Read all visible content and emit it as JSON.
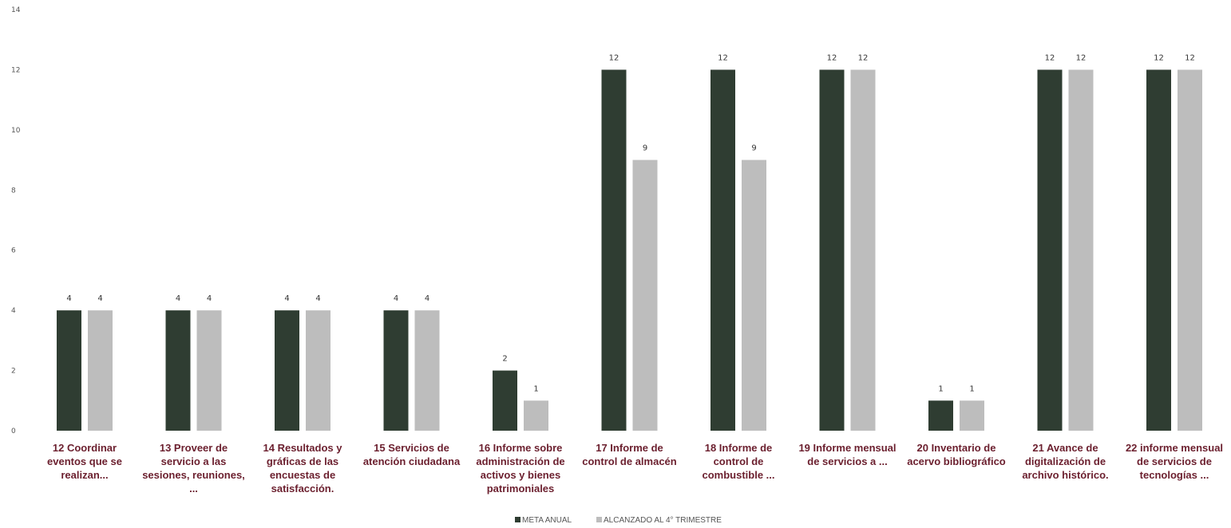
{
  "chart_data": {
    "type": "bar",
    "title": "",
    "xlabel": "",
    "ylabel": "",
    "ylim": [
      0,
      14
    ],
    "y_ticks": [
      0,
      2,
      4,
      6,
      8,
      10,
      12,
      14
    ],
    "grid": false,
    "legend_position": "bottom",
    "categories": [
      [
        "12 Coordinar",
        "eventos que se",
        "realizan..."
      ],
      [
        "13 Proveer de",
        "servicio a las",
        "sesiones, reuniones,",
        "..."
      ],
      [
        "14 Resultados y",
        "gráficas de las",
        "encuestas de",
        "satisfacción."
      ],
      [
        "15 Servicios de",
        "atención ciudadana"
      ],
      [
        "16 Informe sobre",
        "administración de",
        "activos  y bienes",
        "patrimoniales"
      ],
      [
        "17 Informe de",
        "control de almacén"
      ],
      [
        "18 Informe de",
        "control de",
        "combustible ..."
      ],
      [
        "19 Informe mensual",
        "de servicios a ..."
      ],
      [
        "20 Inventario de",
        "acervo bibliográfico"
      ],
      [
        "21 Avance de",
        "digitalización de",
        "archivo histórico."
      ],
      [
        "22 informe mensual",
        "de servicios de",
        "tecnologías ..."
      ]
    ],
    "series": [
      {
        "name": "META ANUAL",
        "color": "#2f3d32",
        "values": [
          4,
          4,
          4,
          4,
          2,
          12,
          12,
          12,
          1,
          12,
          12
        ]
      },
      {
        "name": "ALCANZADO AL 4° TRIMESTRE",
        "color": "#bdbdbd",
        "values": [
          4,
          4,
          4,
          4,
          1,
          9,
          9,
          12,
          1,
          12,
          12
        ]
      }
    ],
    "category_label_color": "#6b1f2e"
  }
}
